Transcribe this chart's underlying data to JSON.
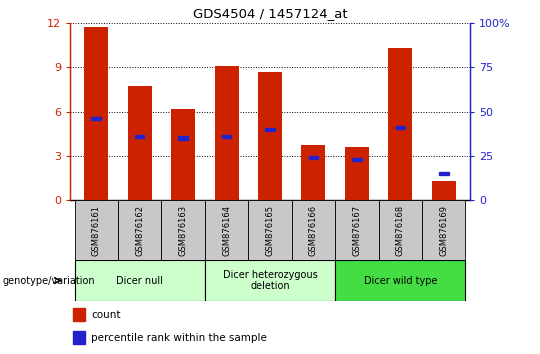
{
  "title": "GDS4504 / 1457124_at",
  "samples": [
    "GSM876161",
    "GSM876162",
    "GSM876163",
    "GSM876164",
    "GSM876165",
    "GSM876166",
    "GSM876167",
    "GSM876168",
    "GSM876169"
  ],
  "counts": [
    11.7,
    7.7,
    6.2,
    9.1,
    8.7,
    3.7,
    3.6,
    10.3,
    1.3
  ],
  "percentiles": [
    46,
    36,
    35,
    36,
    40,
    24,
    23,
    41,
    15
  ],
  "ylim_left": [
    0,
    12
  ],
  "ylim_right": [
    0,
    100
  ],
  "yticks_left": [
    0,
    3,
    6,
    9,
    12
  ],
  "yticks_right": [
    0,
    25,
    50,
    75,
    100
  ],
  "bar_color": "#CC2200",
  "pct_color": "#2222CC",
  "groups": [
    {
      "label": "Dicer null",
      "start": 0,
      "end": 2,
      "color": "#CCFFCC"
    },
    {
      "label": "Dicer heterozygous\ndeletion",
      "start": 3,
      "end": 5,
      "color": "#CCFFCC"
    },
    {
      "label": "Dicer wild type",
      "start": 6,
      "end": 8,
      "color": "#44DD44"
    }
  ],
  "legend_count_label": "count",
  "legend_pct_label": "percentile rank within the sample",
  "genotype_label": "genotype/variation",
  "tick_bg_color": "#C8C8C8",
  "bar_width": 0.55
}
